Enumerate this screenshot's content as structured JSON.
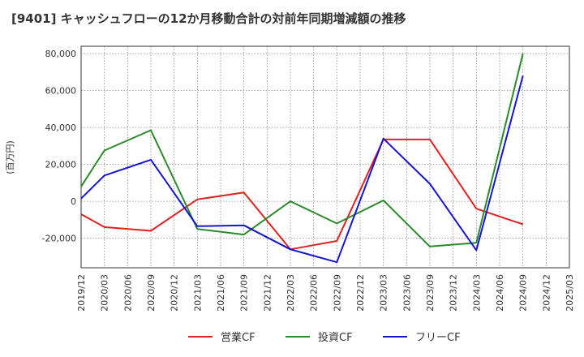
{
  "chart_data": {
    "type": "line",
    "title": "[9401]  キャッシュフローの12か月移動合計の対前年同期増減額の推移",
    "ylabel": "(百万円)",
    "xlabel": "",
    "ylim": [
      -36000,
      84000
    ],
    "yticks": [
      80000,
      60000,
      40000,
      20000,
      0,
      -20000
    ],
    "ytick_labels": [
      "80,000",
      "60,000",
      "40,000",
      "20,000",
      "0",
      "-20,000"
    ],
    "categories": [
      "2019/12",
      "2020/03",
      "2020/06",
      "2020/09",
      "2020/12",
      "2021/03",
      "2021/06",
      "2021/09",
      "2021/12",
      "2022/03",
      "2022/06",
      "2022/09",
      "2022/12",
      "2023/03",
      "2023/06",
      "2023/09",
      "2023/12",
      "2024/03",
      "2024/06",
      "2024/09",
      "2024/12",
      "2025/03"
    ],
    "series": [
      {
        "name": "営業CF",
        "color": "#dd2222",
        "values": [
          -7000,
          -14000,
          null,
          -16000,
          null,
          1000,
          null,
          4800,
          null,
          -26000,
          null,
          -21500,
          null,
          33500,
          null,
          33500,
          null,
          -4000,
          null,
          -12500,
          null,
          null
        ]
      },
      {
        "name": "投資CF",
        "color": "#2a8a2a",
        "values": [
          8000,
          27500,
          null,
          38500,
          null,
          -15000,
          null,
          -18000,
          null,
          0,
          null,
          -12000,
          null,
          500,
          null,
          -24500,
          null,
          -22500,
          null,
          80000,
          null,
          null
        ]
      },
      {
        "name": "フリーCF",
        "color": "#1515cc",
        "values": [
          1500,
          14000,
          null,
          22500,
          null,
          -13500,
          null,
          -13000,
          null,
          -26000,
          null,
          -33000,
          null,
          34000,
          null,
          9500,
          null,
          -26500,
          null,
          68000,
          null,
          null
        ]
      }
    ],
    "grid": true,
    "legend_position": "bottom"
  }
}
